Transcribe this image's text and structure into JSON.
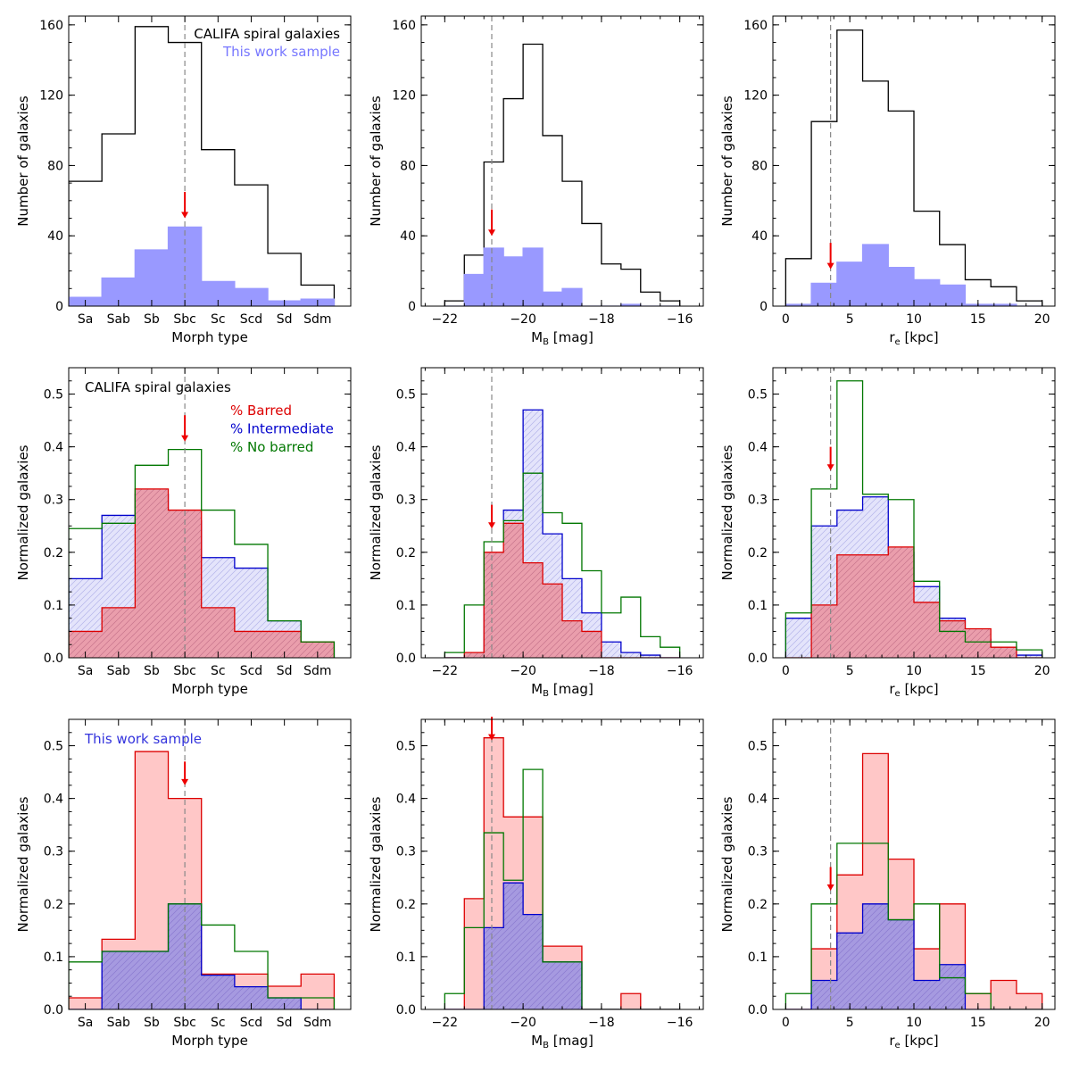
{
  "figure": {
    "colors": {
      "califa": "#000000",
      "sample_fill": "#9999ff",
      "sample_text": "#7777ff",
      "barred": "#dd0000",
      "barred_fill": "#ffc7c7",
      "intermediate": "#0000cc",
      "intermediate_fill": "#e4e4fb",
      "intermediate_hatch": "#b4b4ea",
      "overlap_fill": "#ea9eac",
      "overlap_hatch": "#c6748c",
      "sample_row_intermediate_fill": "#a69ae0",
      "sample_row_intermediate_hatch": "#8a7ad0",
      "no_barred": "#007700",
      "sample_label": "#3333dd",
      "arrow": "#ee0000",
      "vline": "#888888"
    }
  },
  "chart_data": [
    {
      "id": "r0c0",
      "type": "histogram",
      "axis_kind": "morph",
      "xlabel": "Morph type",
      "ylabel": "Number of galaxies",
      "xlim": [
        0,
        8.5
      ],
      "ylim": [
        0,
        165
      ],
      "categories": [
        "Sa",
        "Sab",
        "Sb",
        "Sbc",
        "Sc",
        "Scd",
        "Sd",
        "Sdm"
      ],
      "yticks": [
        0,
        40,
        80,
        120,
        160
      ],
      "vline": 3.5,
      "arrow": {
        "x": 3.5,
        "y_top": 65,
        "y_tip": 50
      },
      "annotations": [
        {
          "text": "CALIFA spiral galaxies",
          "align": "right",
          "color_key": "califa"
        },
        {
          "text": "This work sample",
          "align": "right",
          "color_key": "sample_text"
        }
      ],
      "series": [
        {
          "style": "califa",
          "edges": [
            0,
            1,
            2,
            3,
            4,
            5,
            6,
            7,
            8
          ],
          "values": [
            71,
            98,
            159,
            150,
            89,
            69,
            30,
            12
          ]
        },
        {
          "style": "sample",
          "edges": [
            0,
            1,
            2,
            3,
            4,
            5,
            6,
            7,
            8
          ],
          "values": [
            5,
            16,
            32,
            45,
            14,
            10,
            3,
            4
          ]
        }
      ]
    },
    {
      "id": "r0c1",
      "type": "histogram",
      "axis_kind": "mag",
      "xlabel": "M",
      "xlabel_sub": "B",
      "xlabel_unit": " [mag]",
      "ylabel": "Number of galaxies",
      "xlim": [
        -22.6,
        -15.4
      ],
      "ylim": [
        0,
        165
      ],
      "xticks": [
        -22,
        -20,
        -18,
        -16
      ],
      "yticks": [
        0,
        40,
        80,
        120,
        160
      ],
      "vline": -20.8,
      "arrow": {
        "x": -20.8,
        "y_top": 55,
        "y_tip": 40
      },
      "annotations": [],
      "series": [
        {
          "style": "califa",
          "edges": [
            -22,
            -21.5,
            -21,
            -20.5,
            -20,
            -19.5,
            -19,
            -18.5,
            -18,
            -17.5,
            -17,
            -16.5,
            -16
          ],
          "values": [
            3,
            29,
            82,
            118,
            149,
            97,
            71,
            47,
            24,
            21,
            8,
            3
          ]
        },
        {
          "style": "sample",
          "edges": [
            -22,
            -21.5,
            -21,
            -20.5,
            -20,
            -19.5,
            -19,
            -18.5,
            -18,
            -17.5,
            -17,
            -16.5,
            -16
          ],
          "values": [
            0,
            18,
            33,
            28,
            33,
            8,
            10,
            0,
            0,
            1,
            0,
            0
          ]
        }
      ]
    },
    {
      "id": "r0c2",
      "type": "histogram",
      "axis_kind": "re",
      "xlabel": "r",
      "xlabel_sub": "e",
      "xlabel_unit": " [kpc]",
      "ylabel": "Number of galaxies",
      "xlim": [
        -1,
        21
      ],
      "ylim": [
        0,
        165
      ],
      "xticks": [
        0,
        5,
        10,
        15,
        20
      ],
      "yticks": [
        0,
        40,
        80,
        120,
        160
      ],
      "vline": 3.5,
      "arrow": {
        "x": 3.5,
        "y_top": 36,
        "y_tip": 21
      },
      "annotations": [],
      "series": [
        {
          "style": "califa",
          "edges": [
            0,
            2,
            4,
            6,
            8,
            10,
            12,
            14,
            16,
            18,
            20
          ],
          "values": [
            27,
            105,
            157,
            128,
            111,
            54,
            35,
            15,
            11,
            3
          ]
        },
        {
          "style": "sample",
          "edges": [
            0,
            2,
            4,
            6,
            8,
            10,
            12,
            14,
            16,
            18,
            20
          ],
          "values": [
            1,
            13,
            25,
            35,
            22,
            15,
            12,
            1,
            1,
            0
          ]
        }
      ]
    },
    {
      "id": "r1c0",
      "type": "histogram",
      "axis_kind": "morph",
      "xlabel": "Morph type",
      "ylabel": "Normalized galaxies",
      "xlim": [
        0,
        8.5
      ],
      "ylim": [
        0,
        0.55
      ],
      "categories": [
        "Sa",
        "Sab",
        "Sb",
        "Sbc",
        "Sc",
        "Scd",
        "Sd",
        "Sdm"
      ],
      "yticks": [
        0.0,
        0.1,
        0.2,
        0.3,
        0.4,
        0.5
      ],
      "vline": 3.5,
      "arrow": {
        "x": 3.5,
        "y_top": 0.46,
        "y_tip": 0.41
      },
      "annotations": [
        {
          "text": "CALIFA spiral galaxies",
          "align": "left",
          "color_key": "califa"
        },
        {
          "text": "% Barred",
          "align": "left",
          "color_key": "barred"
        },
        {
          "text": "% Intermediate",
          "align": "left",
          "color_key": "intermediate"
        },
        {
          "text": "% No barred",
          "align": "left",
          "color_key": "no_barred"
        }
      ],
      "series": [
        {
          "style": "intermediate",
          "edges": [
            0,
            1,
            2,
            3,
            4,
            5,
            6,
            7,
            8
          ],
          "values": [
            0.15,
            0.27,
            0.31,
            0.26,
            0.19,
            0.17,
            0.07,
            0.015
          ]
        },
        {
          "style": "barred",
          "edges": [
            0,
            1,
            2,
            3,
            4,
            5,
            6,
            7,
            8
          ],
          "values": [
            0.05,
            0.095,
            0.32,
            0.28,
            0.095,
            0.05,
            0.05,
            0.03
          ]
        },
        {
          "style": "no_barred",
          "edges": [
            0,
            1,
            2,
            3,
            4,
            5,
            6,
            7,
            8
          ],
          "values": [
            0.245,
            0.255,
            0.365,
            0.395,
            0.28,
            0.215,
            0.07,
            0.03
          ]
        }
      ]
    },
    {
      "id": "r1c1",
      "type": "histogram",
      "axis_kind": "mag",
      "xlabel": "M",
      "xlabel_sub": "B",
      "xlabel_unit": " [mag]",
      "ylabel": "Normalized galaxies",
      "xlim": [
        -22.6,
        -15.4
      ],
      "ylim": [
        0,
        0.55
      ],
      "xticks": [
        -22,
        -20,
        -18,
        -16
      ],
      "yticks": [
        0.0,
        0.1,
        0.2,
        0.3,
        0.4,
        0.5
      ],
      "vline": -20.8,
      "arrow": {
        "x": -20.8,
        "y_top": 0.29,
        "y_tip": 0.245
      },
      "annotations": [],
      "series": [
        {
          "style": "intermediate",
          "edges": [
            -22,
            -21.5,
            -21,
            -20.5,
            -20,
            -19.5,
            -19,
            -18.5,
            -18,
            -17.5,
            -17,
            -16.5,
            -16
          ],
          "values": [
            0,
            0,
            0.13,
            0.28,
            0.47,
            0.235,
            0.15,
            0.085,
            0.03,
            0.01,
            0.005,
            0
          ]
        },
        {
          "style": "barred",
          "edges": [
            -22,
            -21.5,
            -21,
            -20.5,
            -20,
            -19.5,
            -19,
            -18.5,
            -18,
            -17.5,
            -17,
            -16.5,
            -16
          ],
          "values": [
            0,
            0.01,
            0.2,
            0.255,
            0.18,
            0.14,
            0.07,
            0.05,
            0,
            0,
            0,
            0
          ]
        },
        {
          "style": "no_barred",
          "edges": [
            -22,
            -21.5,
            -21,
            -20.5,
            -20,
            -19.5,
            -19,
            -18.5,
            -18,
            -17.5,
            -17,
            -16.5,
            -16
          ],
          "values": [
            0.01,
            0.1,
            0.22,
            0.26,
            0.35,
            0.275,
            0.255,
            0.165,
            0.085,
            0.115,
            0.04,
            0.02
          ]
        }
      ]
    },
    {
      "id": "r1c2",
      "type": "histogram",
      "axis_kind": "re",
      "xlabel": "r",
      "xlabel_sub": "e",
      "xlabel_unit": " [kpc]",
      "ylabel": "Normalized galaxies",
      "xlim": [
        -1,
        21
      ],
      "ylim": [
        0,
        0.55
      ],
      "xticks": [
        0,
        5,
        10,
        15,
        20
      ],
      "yticks": [
        0.0,
        0.1,
        0.2,
        0.3,
        0.4,
        0.5
      ],
      "vline": 3.5,
      "arrow": {
        "x": 3.5,
        "y_top": 0.4,
        "y_tip": 0.355
      },
      "annotations": [],
      "series": [
        {
          "style": "intermediate",
          "edges": [
            0,
            2,
            4,
            6,
            8,
            10,
            12,
            14,
            16,
            18,
            20
          ],
          "values": [
            0.075,
            0.25,
            0.28,
            0.305,
            0.2,
            0.135,
            0.075,
            0.035,
            0.02,
            0.005
          ]
        },
        {
          "style": "barred",
          "edges": [
            0,
            2,
            4,
            6,
            8,
            10,
            12,
            14,
            16,
            18,
            20
          ],
          "values": [
            0,
            0.1,
            0.195,
            0.195,
            0.21,
            0.105,
            0.07,
            0.055,
            0.02,
            0
          ]
        },
        {
          "style": "no_barred",
          "edges": [
            0,
            2,
            4,
            6,
            8,
            10,
            12,
            14,
            16,
            18,
            20
          ],
          "values": [
            0.085,
            0.32,
            0.525,
            0.31,
            0.3,
            0.145,
            0.05,
            0.03,
            0.03,
            0.015
          ]
        }
      ]
    },
    {
      "id": "r2c0",
      "type": "histogram",
      "axis_kind": "morph",
      "xlabel": "Morph type",
      "ylabel": "Normalized galaxies",
      "xlim": [
        0,
        8.5
      ],
      "ylim": [
        0,
        0.55
      ],
      "categories": [
        "Sa",
        "Sab",
        "Sb",
        "Sbc",
        "Sc",
        "Scd",
        "Sd",
        "Sdm"
      ],
      "yticks": [
        0.0,
        0.1,
        0.2,
        0.3,
        0.4,
        0.5
      ],
      "vline": 3.5,
      "arrow": {
        "x": 3.5,
        "y_top": 0.47,
        "y_tip": 0.425
      },
      "annotations": [
        {
          "text": "This work sample",
          "align": "left",
          "color_key": "sample_label"
        }
      ],
      "series": [
        {
          "style": "barred_sample",
          "edges": [
            0,
            1,
            2,
            3,
            4,
            5,
            6,
            7,
            8
          ],
          "values": [
            0.022,
            0.133,
            0.489,
            0.4,
            0.067,
            0.067,
            0.044,
            0.067
          ]
        },
        {
          "style": "intermediate_sample",
          "edges": [
            0,
            1,
            2,
            3,
            4,
            5,
            6,
            7,
            8
          ],
          "values": [
            0,
            0.11,
            0.11,
            0.2,
            0.065,
            0.043,
            0.022,
            0
          ]
        },
        {
          "style": "no_barred",
          "edges": [
            0,
            1,
            2,
            3,
            4,
            5,
            6,
            7,
            8
          ],
          "values": [
            0.09,
            0.11,
            0.11,
            0.2,
            0.16,
            0.11,
            0.022,
            0.022
          ]
        }
      ]
    },
    {
      "id": "r2c1",
      "type": "histogram",
      "axis_kind": "mag",
      "xlabel": "M",
      "xlabel_sub": "B",
      "xlabel_unit": " [mag]",
      "ylabel": "Normalized galaxies",
      "xlim": [
        -22.6,
        -15.4
      ],
      "ylim": [
        0,
        0.55
      ],
      "xticks": [
        -22,
        -20,
        -18,
        -16
      ],
      "yticks": [
        0.0,
        0.1,
        0.2,
        0.3,
        0.4,
        0.5
      ],
      "vline": -20.8,
      "arrow": {
        "x": -20.8,
        "y_top": 0.555,
        "y_tip": 0.51
      },
      "annotations": [],
      "series": [
        {
          "style": "barred_sample",
          "edges": [
            -22,
            -21.5,
            -21,
            -20.5,
            -20,
            -19.5,
            -19,
            -18.5,
            -18,
            -17.5,
            -17,
            -16.5,
            -16
          ],
          "values": [
            0,
            0.21,
            0.515,
            0.365,
            0.365,
            0.12,
            0.12,
            0,
            0,
            0.03,
            0,
            0
          ]
        },
        {
          "style": "intermediate_sample",
          "edges": [
            -22,
            -21.5,
            -21,
            -20.5,
            -20,
            -19.5,
            -19,
            -18.5,
            -18,
            -17.5,
            -17,
            -16.5,
            -16
          ],
          "values": [
            0,
            0,
            0.155,
            0.24,
            0.18,
            0.09,
            0.09,
            0,
            0,
            0,
            0,
            0
          ]
        },
        {
          "style": "no_barred",
          "edges": [
            -22,
            -21.5,
            -21,
            -20.5,
            -20,
            -19.5,
            -19,
            -18.5,
            -18,
            -17.5,
            -17,
            -16.5,
            -16
          ],
          "values": [
            0.03,
            0.155,
            0.335,
            0.245,
            0.455,
            0.09,
            0.09,
            0,
            0,
            0,
            0,
            0
          ]
        }
      ]
    },
    {
      "id": "r2c2",
      "type": "histogram",
      "axis_kind": "re",
      "xlabel": "r",
      "xlabel_sub": "e",
      "xlabel_unit": " [kpc]",
      "ylabel": "Normalized galaxies",
      "xlim": [
        -1,
        21
      ],
      "ylim": [
        0,
        0.55
      ],
      "xticks": [
        0,
        5,
        10,
        15,
        20
      ],
      "yticks": [
        0.0,
        0.1,
        0.2,
        0.3,
        0.4,
        0.5
      ],
      "vline": 3.5,
      "arrow": {
        "x": 3.5,
        "y_top": 0.27,
        "y_tip": 0.225
      },
      "annotations": [],
      "series": [
        {
          "style": "barred_sample",
          "edges": [
            0,
            2,
            4,
            6,
            8,
            10,
            12,
            14,
            16,
            18,
            20
          ],
          "values": [
            0,
            0.115,
            0.255,
            0.485,
            0.285,
            0.115,
            0.2,
            0.03,
            0.055,
            0.03
          ]
        },
        {
          "style": "intermediate_sample",
          "edges": [
            0,
            2,
            4,
            6,
            8,
            10,
            12,
            14,
            16,
            18,
            20
          ],
          "values": [
            0,
            0.055,
            0.145,
            0.2,
            0.17,
            0.055,
            0.085,
            0,
            0,
            0
          ]
        },
        {
          "style": "no_barred",
          "edges": [
            0,
            2,
            4,
            6,
            8,
            10,
            12,
            14,
            16,
            18,
            20
          ],
          "values": [
            0.03,
            0.2,
            0.315,
            0.315,
            0.17,
            0.2,
            0.06,
            0.03,
            0,
            0
          ]
        }
      ]
    }
  ]
}
